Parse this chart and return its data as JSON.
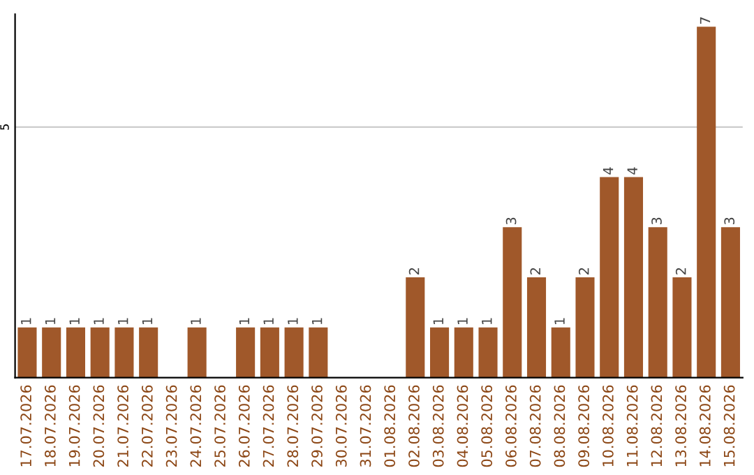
{
  "chart_data": {
    "type": "bar",
    "categories": [
      "17.07.2026",
      "18.07.2026",
      "19.07.2026",
      "20.07.2026",
      "21.07.2026",
      "22.07.2026",
      "23.07.2026",
      "24.07.2026",
      "25.07.2026",
      "26.07.2026",
      "27.07.2026",
      "28.07.2026",
      "29.07.2026",
      "30.07.2026",
      "31.07.2026",
      "01.08.2026",
      "02.08.2026",
      "03.08.2026",
      "04.08.2026",
      "05.08.2026",
      "06.08.2026",
      "07.08.2026",
      "08.08.2026",
      "09.08.2026",
      "10.08.2026",
      "11.08.2026",
      "12.08.2026",
      "13.08.2026",
      "14.08.2026",
      "15.08.2026"
    ],
    "values": [
      1,
      1,
      1,
      1,
      1,
      1,
      0,
      1,
      0,
      1,
      1,
      1,
      1,
      0,
      0,
      0,
      2,
      1,
      1,
      1,
      3,
      2,
      1,
      2,
      4,
      4,
      3,
      2,
      7,
      3
    ],
    "value_labels": [
      "1",
      "1",
      "1",
      "1",
      "1",
      "1",
      null,
      "1",
      null,
      "1",
      "1",
      "1",
      "1",
      null,
      null,
      null,
      "2",
      "1",
      "1",
      "1",
      "3",
      "2",
      "1",
      "2",
      "4",
      "4",
      "3",
      "2",
      "7",
      "3"
    ],
    "color": "#a0582a",
    "ylim": [
      0,
      7.25
    ],
    "yticks": [
      5
    ],
    "grid": "y"
  }
}
